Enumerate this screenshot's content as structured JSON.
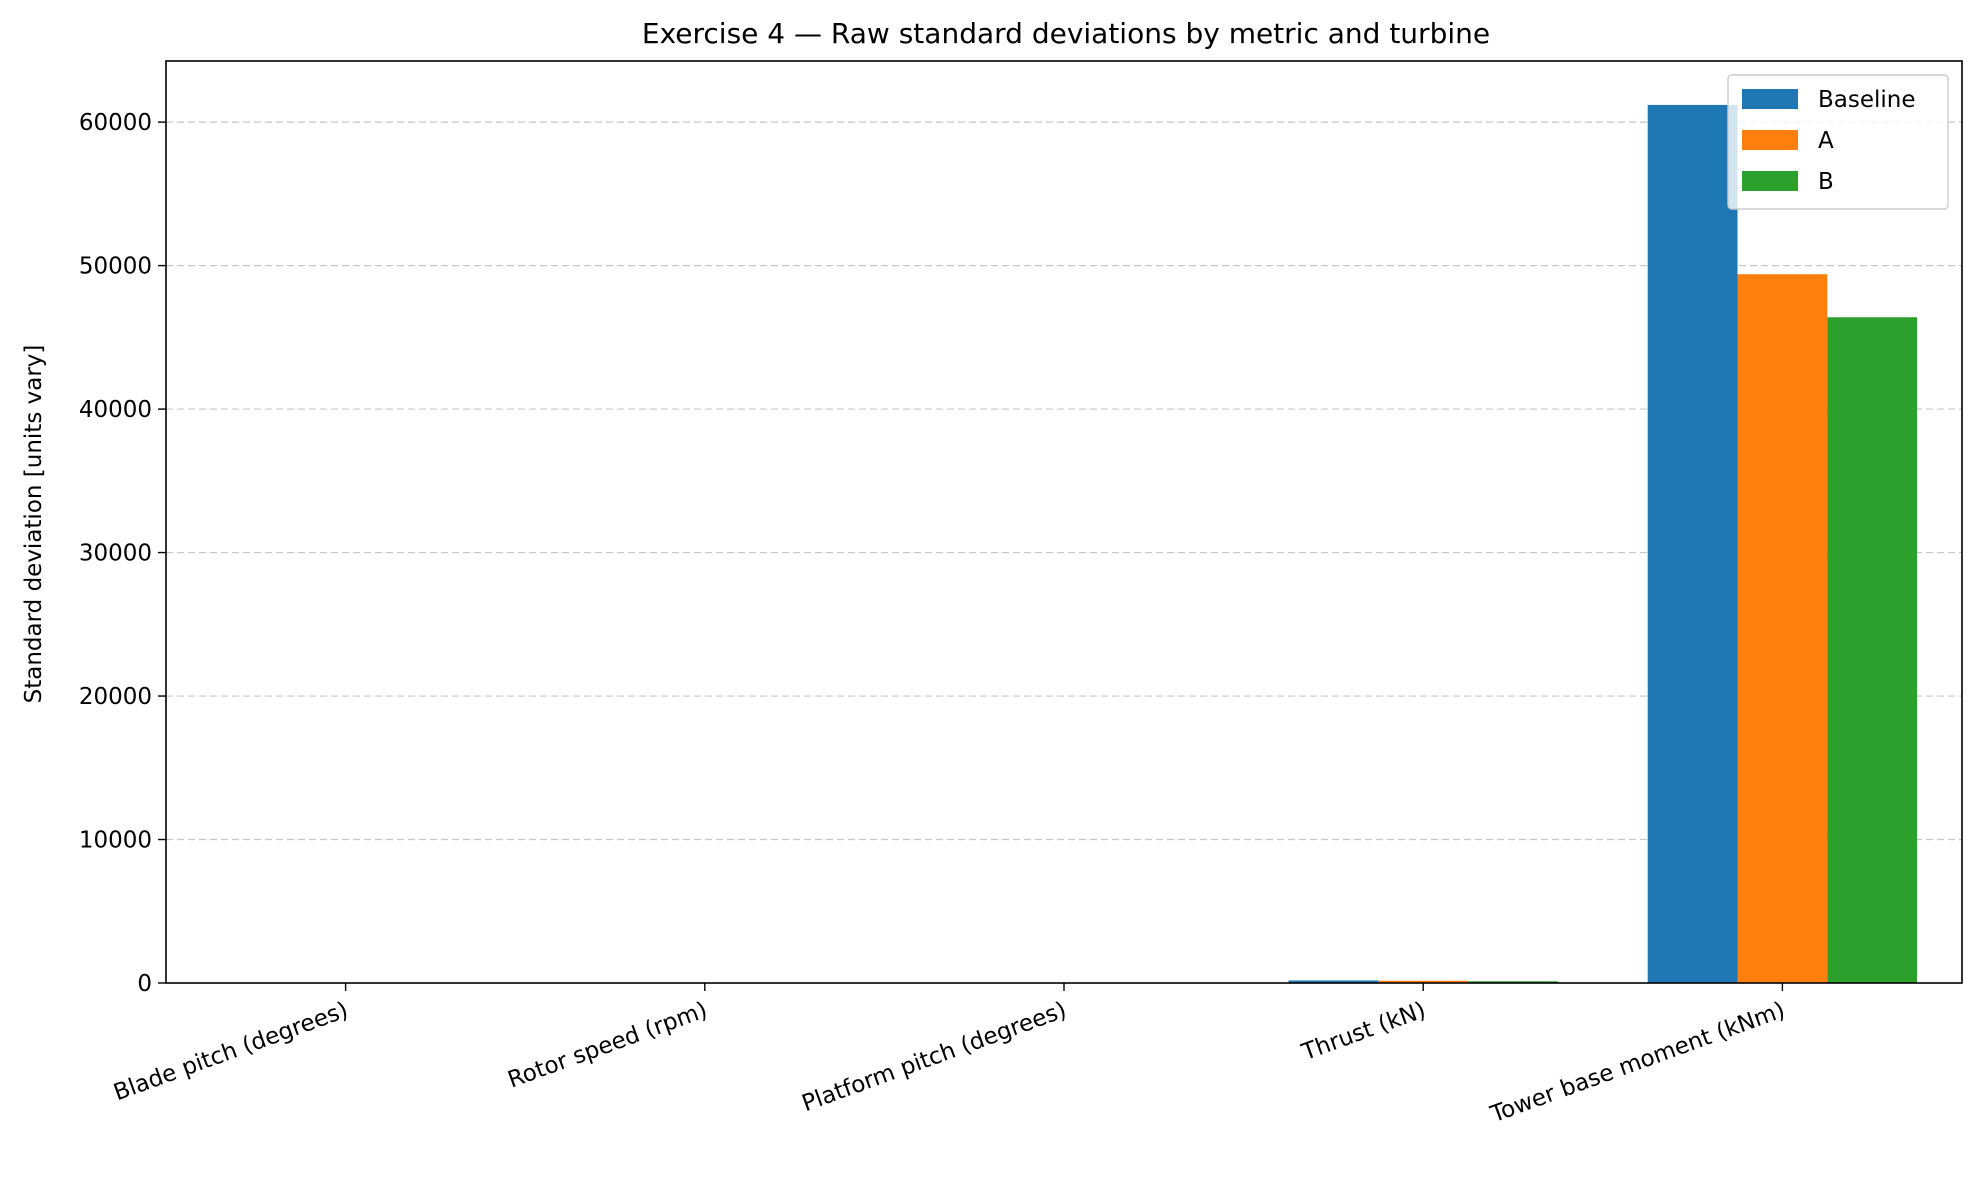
{
  "chart_data": {
    "type": "bar",
    "title": "Exercise 4 — Raw standard deviations by metric and turbine",
    "xlabel": "",
    "ylabel": "Standard deviation [units vary]",
    "categories": [
      "Blade pitch (degrees)",
      "Rotor speed (rpm)",
      "Platform pitch (degrees)",
      "Thrust (kN)",
      "Tower base moment (kNm)"
    ],
    "series": [
      {
        "name": "Baseline",
        "color": "#1f77b4",
        "values": [
          3.2,
          0.9,
          1.6,
          180,
          61200
        ]
      },
      {
        "name": "A",
        "color": "#ff7f0e",
        "values": [
          2.6,
          0.7,
          1.3,
          160,
          49400
        ]
      },
      {
        "name": "B",
        "color": "#2ca02c",
        "values": [
          2.4,
          0.6,
          1.2,
          120,
          46400
        ]
      }
    ],
    "ylim": [
      0,
      64260
    ],
    "yticks": [
      0,
      10000,
      20000,
      30000,
      40000,
      50000,
      60000
    ],
    "ytick_labels": [
      "0",
      "10000",
      "20000",
      "30000",
      "40000",
      "50000",
      "60000"
    ],
    "grid": {
      "y": true,
      "style": "dashed"
    },
    "legend": "top-right"
  }
}
